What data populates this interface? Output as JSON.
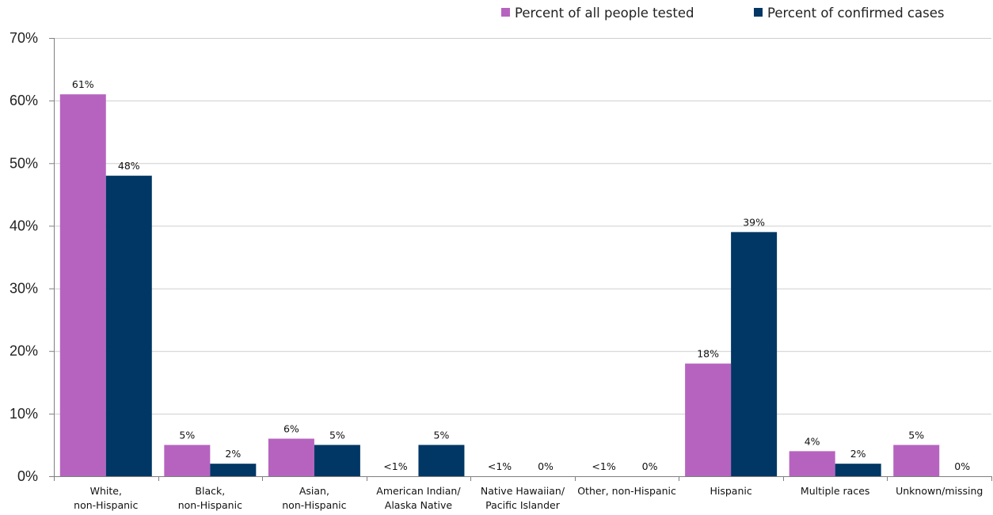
{
  "chart_data": {
    "type": "bar",
    "title": "",
    "xlabel": "",
    "ylabel": "",
    "ylim": [
      0,
      70
    ],
    "yticks": [
      0,
      10,
      20,
      30,
      40,
      50,
      60,
      70
    ],
    "ytick_labels": [
      "0%",
      "10%",
      "20%",
      "30%",
      "40%",
      "50%",
      "60%",
      "70%"
    ],
    "grid": true,
    "legend_position": "top-right",
    "categories": [
      [
        "White,",
        "non-Hispanic"
      ],
      [
        "Black,",
        "non-Hispanic"
      ],
      [
        "Asian,",
        "non-Hispanic"
      ],
      [
        "American Indian/",
        "Alaska Native"
      ],
      [
        "Native Hawaiian/",
        "Pacific Islander"
      ],
      [
        "Other, non-Hispanic"
      ],
      [
        "Hispanic"
      ],
      [
        "Multiple races"
      ],
      [
        "Unknown/missing"
      ]
    ],
    "series": [
      {
        "name": "Percent of all people tested",
        "color": "#b663bf",
        "values": [
          61,
          5,
          6,
          0.3,
          0.3,
          0.3,
          18,
          4,
          5
        ],
        "labels": [
          "61%",
          "5%",
          "6%",
          "<1%",
          "<1%",
          "<1%",
          "18%",
          "4%",
          "5%"
        ]
      },
      {
        "name": "Percent of confirmed cases",
        "color": "#003764",
        "values": [
          48,
          2,
          5,
          5,
          0,
          0,
          39,
          2,
          0
        ],
        "labels": [
          "48%",
          "2%",
          "5%",
          "5%",
          "0%",
          "0%",
          "39%",
          "2%",
          "0%"
        ]
      }
    ]
  }
}
